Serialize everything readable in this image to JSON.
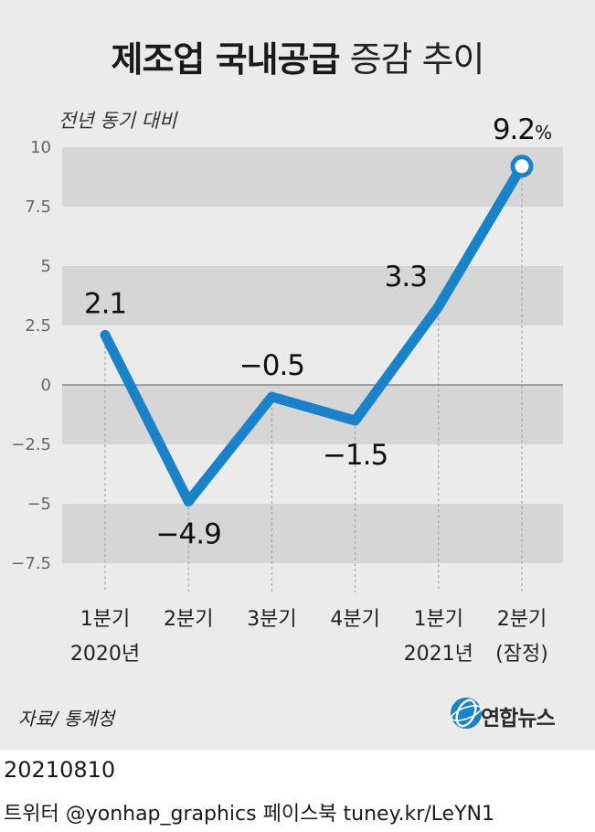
{
  "title": {
    "strong": "제조업 국내공급",
    "light": "증감 추이"
  },
  "unit_label": "전년 동기 대비",
  "source": "자료/ 통계청",
  "logo": {
    "text": "연합뉴스"
  },
  "footer": {
    "date": "20210810",
    "social": "트위터 @yonhap_graphics  페이스북 tuney.kr/LeYN1"
  },
  "colors": {
    "line": "#1a82c9",
    "band": "#d6d6d6",
    "background": "#ebebeb",
    "zero_line": "#777777",
    "logo_blue": "#1a82c9"
  },
  "chart_data": {
    "type": "line",
    "title": "제조업 국내공급 증감 추이",
    "ylabel": "전년 동기 대비",
    "ylim": [
      -7.5,
      10
    ],
    "yticks": [
      "10",
      "7.5",
      "5",
      "2.5",
      "0",
      "−2.5",
      "−5",
      "−7.5"
    ],
    "ytick_values": [
      10,
      7.5,
      5,
      2.5,
      0,
      -2.5,
      -5,
      -7.5
    ],
    "categories": [
      [
        "1분기",
        "2020년"
      ],
      [
        "2분기",
        ""
      ],
      [
        "3분기",
        ""
      ],
      [
        "4분기",
        ""
      ],
      [
        "1분기",
        "2021년"
      ],
      [
        "2분기",
        "(잠정)"
      ]
    ],
    "values": [
      2.1,
      -4.9,
      -0.5,
      -1.5,
      3.3,
      9.2
    ],
    "data_labels": [
      "2.1",
      "−4.9",
      "−0.5",
      "−1.5",
      "3.3",
      "9.2"
    ],
    "last_label_unit": "%",
    "grid": "alternating horizontal bands",
    "legend": "none"
  }
}
